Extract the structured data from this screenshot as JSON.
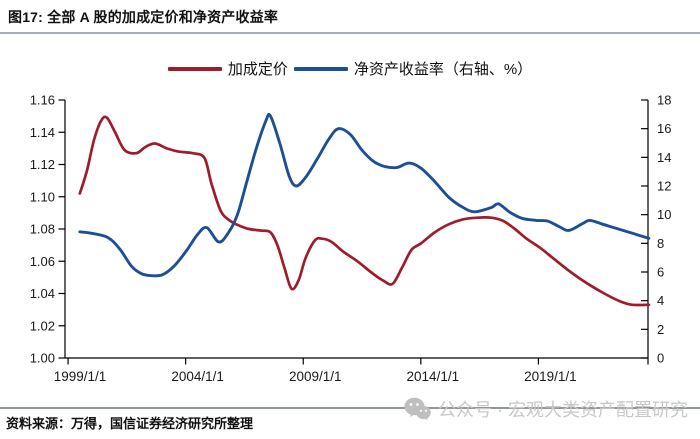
{
  "header": {
    "title": "图17: 全部 A 股的加成定价和净资产收益率"
  },
  "footer": {
    "source": "资料来源：万得，国信证券经济研究所整理"
  },
  "watermark": {
    "text": "公众号 · 宏观大类资产配置研究",
    "icon": "wechat-icon"
  },
  "chart_data": {
    "type": "line",
    "title": "全部 A 股的加成定价和净资产收益率",
    "legend_position": "top-center",
    "grid": false,
    "legend": [
      {
        "label": "加成定价",
        "color": "#9e1c2c"
      },
      {
        "label": "净资产收益率（右轴、%）",
        "color": "#1f4e99"
      }
    ],
    "left_axis": {
      "min": 1.0,
      "max": 1.16,
      "labels": [
        "1.00",
        "1.02",
        "1.04",
        "1.06",
        "1.08",
        "1.10",
        "1.12",
        "1.14",
        "1.16"
      ]
    },
    "right_axis": {
      "min": 0,
      "max": 18,
      "labels": [
        "0",
        "2",
        "4",
        "6",
        "8",
        "10",
        "12",
        "14",
        "16",
        "18"
      ]
    },
    "x_axis": {
      "range": [
        1998.87,
        2023.66
      ],
      "tick_years": [
        1999,
        2004,
        2009,
        2014,
        2019
      ],
      "labels": [
        "1999/1/1",
        "2004/1/1",
        "2009/1/1",
        "2014/1/1",
        "2019/1/1"
      ]
    },
    "series": [
      {
        "id": "markup-pricing",
        "name": "加成定价",
        "axis": "left",
        "color": "#9e1c2c",
        "width": 2.7,
        "points": [
          [
            1999.5,
            1.102
          ],
          [
            1999.8,
            1.116
          ],
          [
            2000.1,
            1.135
          ],
          [
            2000.4,
            1.147
          ],
          [
            2000.65,
            1.149
          ],
          [
            2001.0,
            1.14
          ],
          [
            2001.4,
            1.129
          ],
          [
            2001.9,
            1.127
          ],
          [
            2002.3,
            1.131
          ],
          [
            2002.7,
            1.133
          ],
          [
            2003.2,
            1.13
          ],
          [
            2003.7,
            1.128
          ],
          [
            2004.3,
            1.127
          ],
          [
            2004.8,
            1.124
          ],
          [
            2005.1,
            1.108
          ],
          [
            2005.5,
            1.091
          ],
          [
            2005.9,
            1.085
          ],
          [
            2006.3,
            1.082
          ],
          [
            2006.7,
            1.08
          ],
          [
            2007.2,
            1.079
          ],
          [
            2007.6,
            1.078
          ],
          [
            2007.9,
            1.07
          ],
          [
            2008.2,
            1.056
          ],
          [
            2008.5,
            1.043
          ],
          [
            2008.8,
            1.048
          ],
          [
            2009.1,
            1.062
          ],
          [
            2009.5,
            1.073
          ],
          [
            2009.8,
            1.074
          ],
          [
            2010.2,
            1.072
          ],
          [
            2010.7,
            1.066
          ],
          [
            2011.3,
            1.06
          ],
          [
            2011.9,
            1.053
          ],
          [
            2012.4,
            1.048
          ],
          [
            2012.8,
            1.046
          ],
          [
            2013.2,
            1.056
          ],
          [
            2013.6,
            1.067
          ],
          [
            2014.0,
            1.071
          ],
          [
            2014.6,
            1.078
          ],
          [
            2015.2,
            1.083
          ],
          [
            2015.8,
            1.086
          ],
          [
            2016.4,
            1.087
          ],
          [
            2017.0,
            1.087
          ],
          [
            2017.5,
            1.085
          ],
          [
            2018.0,
            1.08
          ],
          [
            2018.5,
            1.074
          ],
          [
            2019.1,
            1.068
          ],
          [
            2019.7,
            1.061
          ],
          [
            2020.4,
            1.053
          ],
          [
            2021.1,
            1.046
          ],
          [
            2021.8,
            1.04
          ],
          [
            2022.5,
            1.035
          ],
          [
            2023.0,
            1.033
          ],
          [
            2023.7,
            1.033
          ]
        ]
      },
      {
        "id": "roe",
        "name": "净资产收益率（右轴、%）",
        "axis": "right",
        "color": "#1f4e99",
        "width": 2.9,
        "points": [
          [
            1999.5,
            8.8
          ],
          [
            2000.0,
            8.7
          ],
          [
            2000.7,
            8.4
          ],
          [
            2001.2,
            7.6
          ],
          [
            2001.7,
            6.4
          ],
          [
            2002.1,
            5.9
          ],
          [
            2002.5,
            5.75
          ],
          [
            2003.0,
            5.8
          ],
          [
            2003.5,
            6.4
          ],
          [
            2004.0,
            7.4
          ],
          [
            2004.5,
            8.6
          ],
          [
            2004.9,
            9.1
          ],
          [
            2005.4,
            8.1
          ],
          [
            2005.8,
            8.7
          ],
          [
            2006.2,
            10.0
          ],
          [
            2006.6,
            12.3
          ],
          [
            2007.0,
            14.6
          ],
          [
            2007.4,
            16.5
          ],
          [
            2007.6,
            16.9
          ],
          [
            2008.0,
            15.0
          ],
          [
            2008.4,
            12.7
          ],
          [
            2008.7,
            12.0
          ],
          [
            2009.1,
            12.6
          ],
          [
            2009.6,
            13.9
          ],
          [
            2010.1,
            15.3
          ],
          [
            2010.5,
            16.0
          ],
          [
            2011.0,
            15.6
          ],
          [
            2011.5,
            14.5
          ],
          [
            2012.0,
            13.7
          ],
          [
            2012.5,
            13.35
          ],
          [
            2013.0,
            13.3
          ],
          [
            2013.5,
            13.6
          ],
          [
            2014.0,
            13.25
          ],
          [
            2014.6,
            12.3
          ],
          [
            2015.2,
            11.2
          ],
          [
            2015.8,
            10.5
          ],
          [
            2016.3,
            10.2
          ],
          [
            2017.0,
            10.5
          ],
          [
            2017.3,
            10.75
          ],
          [
            2017.8,
            10.15
          ],
          [
            2018.3,
            9.75
          ],
          [
            2018.9,
            9.6
          ],
          [
            2019.4,
            9.55
          ],
          [
            2019.9,
            9.15
          ],
          [
            2020.3,
            8.9
          ],
          [
            2020.9,
            9.4
          ],
          [
            2021.2,
            9.6
          ],
          [
            2021.8,
            9.3
          ],
          [
            2022.4,
            9.0
          ],
          [
            2023.0,
            8.7
          ],
          [
            2023.7,
            8.35
          ]
        ]
      }
    ]
  }
}
